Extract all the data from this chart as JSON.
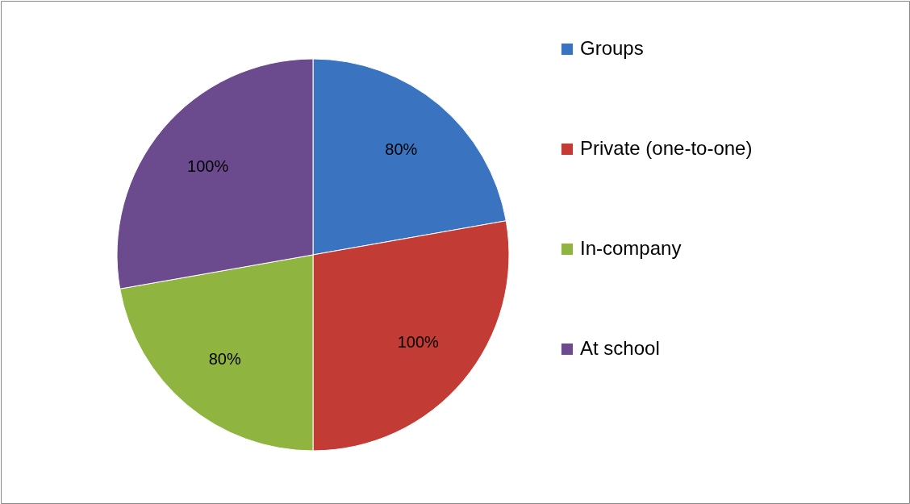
{
  "chart_data": {
    "type": "pie",
    "categories": [
      "Groups",
      "Private (one-to-one)",
      "In-company",
      "At school"
    ],
    "values": [
      80,
      100,
      80,
      100
    ],
    "colors": [
      "#3a74c0",
      "#c23b35",
      "#8fb440",
      "#6c4a8e"
    ],
    "value_labels": [
      "80%",
      "100%",
      "80%",
      "100%"
    ],
    "legend": "right"
  }
}
